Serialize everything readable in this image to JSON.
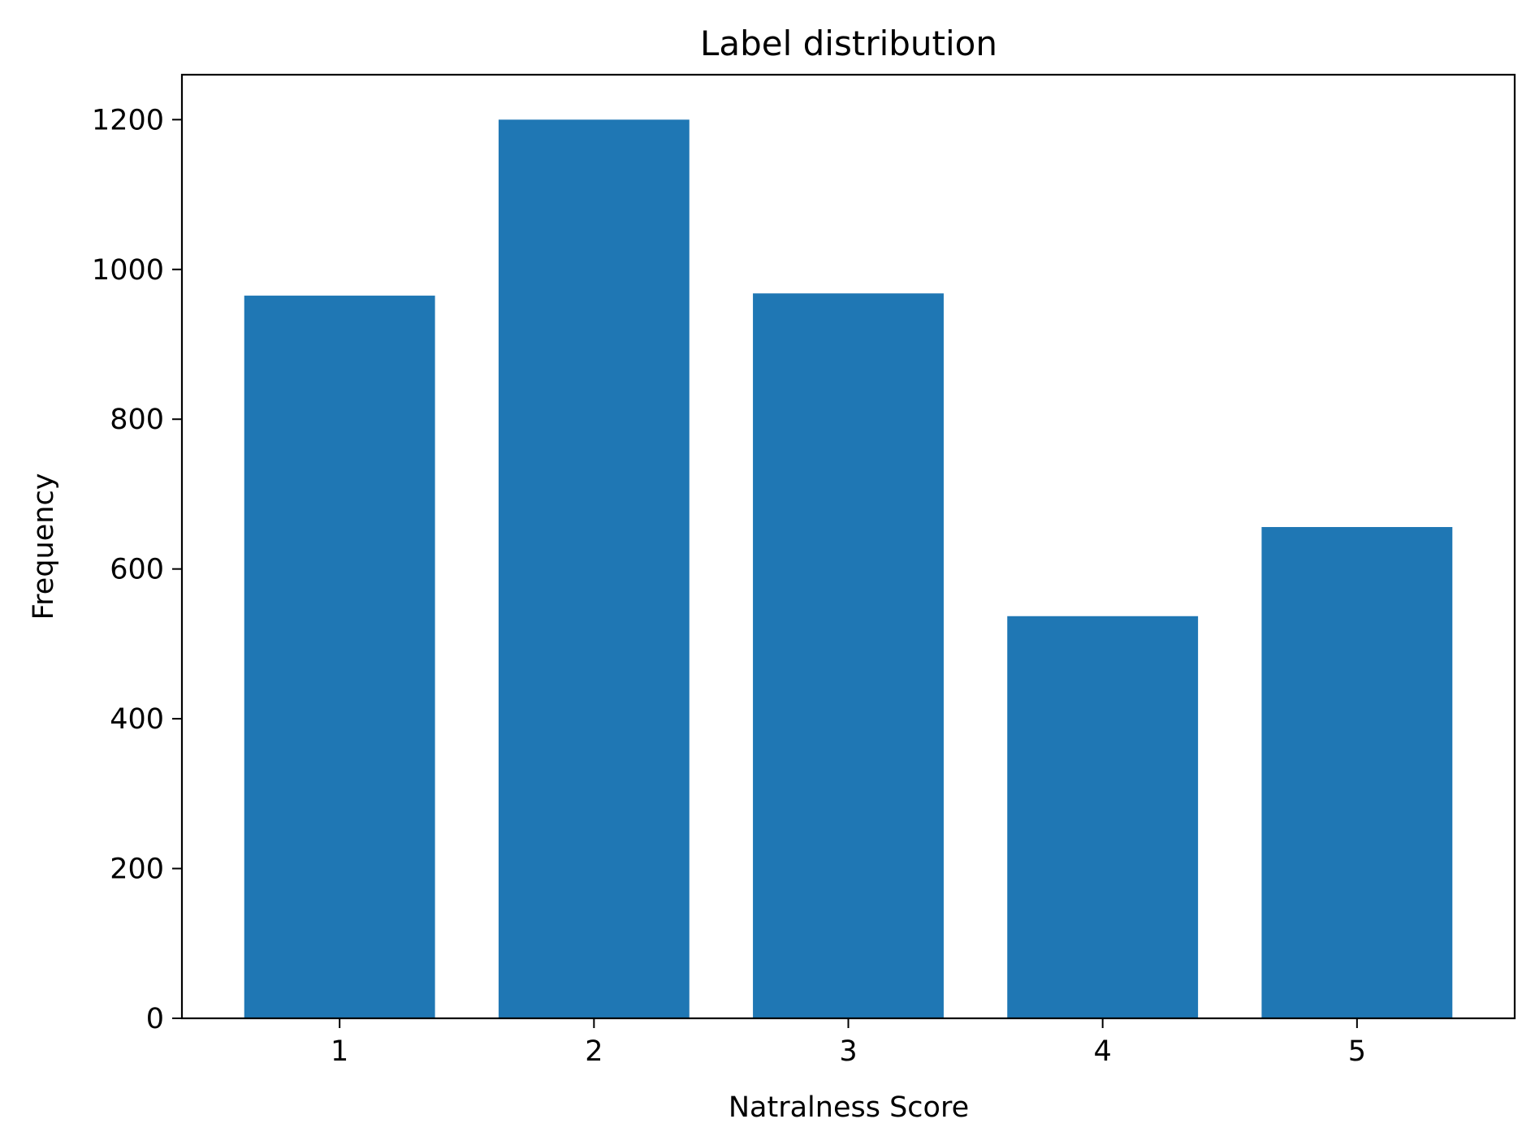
{
  "chart_data": {
    "type": "bar",
    "title": "Label distribution",
    "xlabel": "Natralness Score",
    "ylabel": "Frequency",
    "categories": [
      "1",
      "2",
      "3",
      "4",
      "5"
    ],
    "values": [
      965,
      1200,
      968,
      537,
      656
    ],
    "ylim": [
      0,
      1260
    ],
    "yticks": [
      0,
      200,
      400,
      600,
      800,
      1000,
      1200
    ],
    "bar_color": "#1f77b4",
    "grid": false,
    "legend": false
  }
}
